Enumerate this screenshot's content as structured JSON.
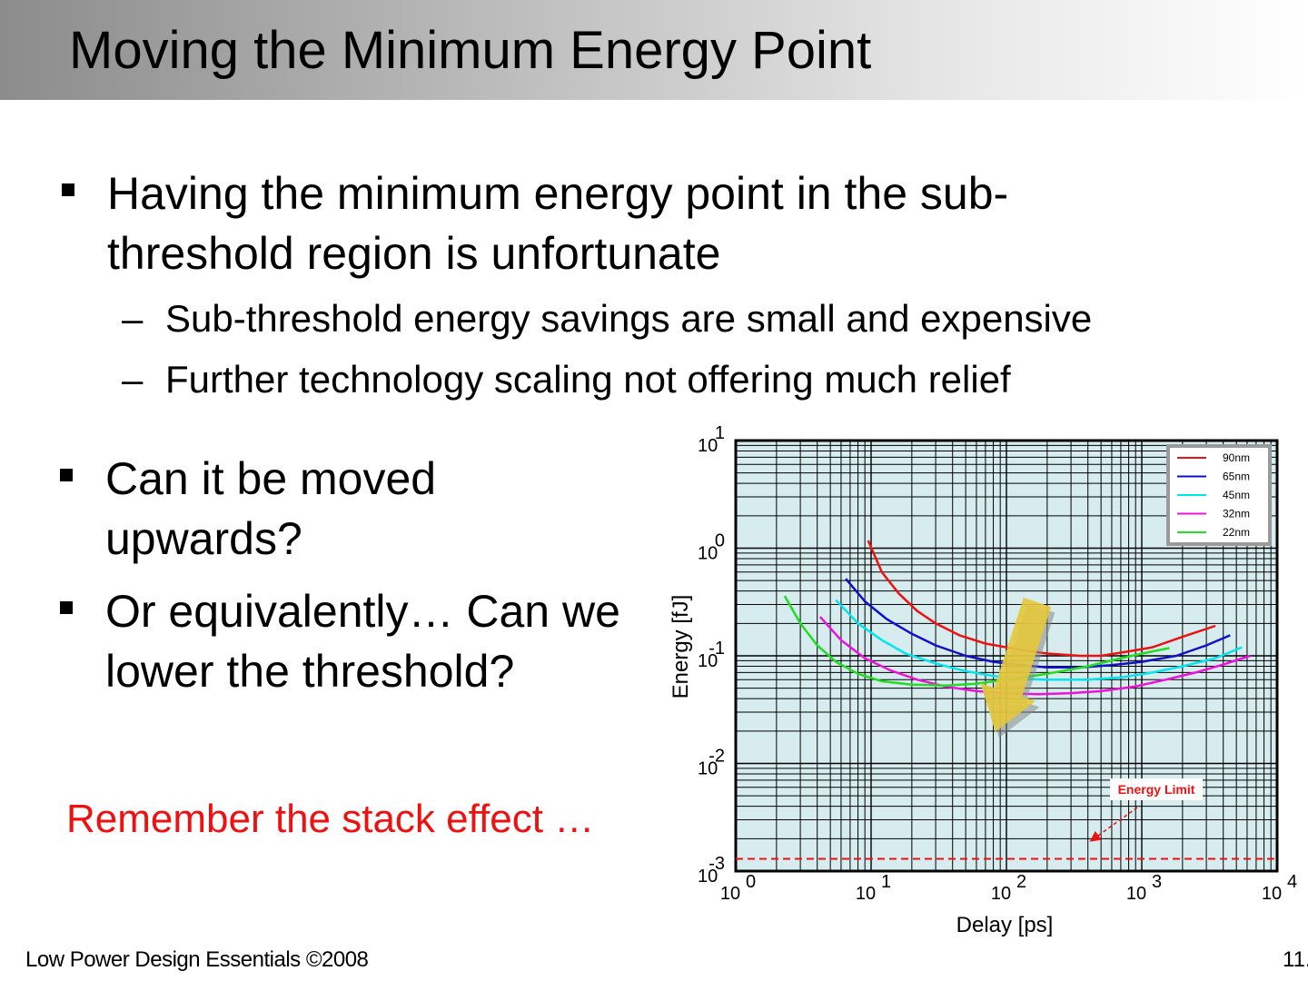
{
  "slide": {
    "title": "Moving the Minimum Energy Point",
    "bullets": [
      {
        "text": "Having the minimum energy point in the sub-threshold region is unfortunate"
      },
      {
        "text": "Can it be moved upwards?"
      },
      {
        "text": "Or equivalently… Can we lower the threshold?"
      }
    ],
    "sub_bullets": [
      {
        "dash": "–",
        "text": "Sub-threshold energy savings are small and expensive"
      },
      {
        "dash": "–",
        "text": "Further technology scaling not offering much relief"
      }
    ],
    "remember": "Remember the stack effect …",
    "footer_left": "Low Power Design Essentials ©2008",
    "footer_right": "11."
  },
  "colors": {
    "plot_bg": "#d6ecee",
    "remember_text": "#ee1111",
    "energy_limit": "#ee1111",
    "arrow": "#e6c83a"
  },
  "chart_data": {
    "type": "line",
    "xlabel": "Delay [ps]",
    "ylabel": "Energy [fJ]",
    "xscale": "log",
    "yscale": "log",
    "xlim": [
      1,
      10000
    ],
    "ylim": [
      0.001,
      10
    ],
    "x_ticks": [
      {
        "base": "10",
        "exp": "0"
      },
      {
        "base": "10",
        "exp": "1"
      },
      {
        "base": "10",
        "exp": "2"
      },
      {
        "base": "10",
        "exp": "3"
      },
      {
        "base": "10",
        "exp": "4"
      }
    ],
    "y_ticks": [
      {
        "base": "10",
        "exp": "1"
      },
      {
        "base": "10",
        "exp": "0"
      },
      {
        "base": "10",
        "exp": "-1"
      },
      {
        "base": "10",
        "exp": "-2"
      },
      {
        "base": "10",
        "exp": "-3"
      }
    ],
    "grid": true,
    "legend_position": "top-right",
    "series": [
      {
        "name": "90nm",
        "color": "#ee1111",
        "x": [
          9.5,
          12,
          16,
          22,
          30,
          45,
          70,
          120,
          200,
          350,
          500,
          800,
          1200,
          2000,
          3500
        ],
        "y": [
          1.18,
          0.6,
          0.38,
          0.26,
          0.2,
          0.155,
          0.13,
          0.115,
          0.105,
          0.1,
          0.1,
          0.11,
          0.12,
          0.15,
          0.19
        ]
      },
      {
        "name": "65nm",
        "color": "#1111cc",
        "x": [
          6.5,
          9,
          13,
          20,
          30,
          50,
          80,
          130,
          200,
          350,
          600,
          1000,
          1800,
          3000,
          4500
        ],
        "y": [
          0.52,
          0.32,
          0.22,
          0.16,
          0.125,
          0.1,
          0.088,
          0.082,
          0.078,
          0.078,
          0.082,
          0.088,
          0.1,
          0.125,
          0.155
        ]
      },
      {
        "name": "45nm",
        "color": "#00e5ee",
        "x": [
          5.5,
          8,
          12,
          18,
          30,
          50,
          80,
          130,
          200,
          400,
          700,
          1200,
          2000,
          3500,
          5500
        ],
        "y": [
          0.33,
          0.2,
          0.14,
          0.105,
          0.085,
          0.072,
          0.065,
          0.061,
          0.06,
          0.06,
          0.063,
          0.07,
          0.08,
          0.095,
          0.12
        ]
      },
      {
        "name": "32nm",
        "color": "#ee11dd",
        "x": [
          4.2,
          6,
          9,
          14,
          22,
          35,
          60,
          100,
          170,
          300,
          500,
          900,
          1500,
          2500,
          4000,
          6300
        ],
        "y": [
          0.23,
          0.14,
          0.095,
          0.073,
          0.06,
          0.052,
          0.047,
          0.045,
          0.044,
          0.045,
          0.047,
          0.052,
          0.06,
          0.07,
          0.083,
          0.1
        ]
      },
      {
        "name": "22nm",
        "color": "#22dd22",
        "x": [
          2.3,
          3,
          4,
          5.5,
          8,
          12,
          20,
          35,
          60,
          100,
          200,
          400,
          700,
          1200,
          1600
        ],
        "y": [
          0.36,
          0.2,
          0.125,
          0.088,
          0.068,
          0.058,
          0.054,
          0.053,
          0.055,
          0.06,
          0.068,
          0.08,
          0.095,
          0.11,
          0.118
        ]
      }
    ],
    "energy_limit": {
      "label": "Energy Limit",
      "y": 0.0013
    }
  }
}
